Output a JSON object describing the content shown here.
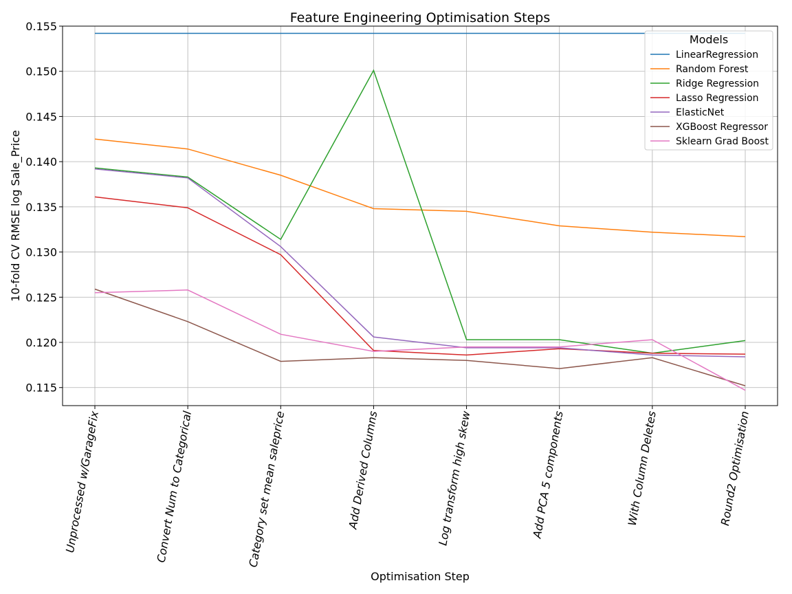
{
  "chart_data": {
    "type": "line",
    "title": "Feature Engineering Optimisation Steps",
    "xlabel": "Optimisation Step",
    "ylabel": "10-fold CV RMSE log Sale_Price",
    "categories": [
      "Unprocessed w/GarageFix",
      "Convert Num to Categorical",
      "Category set mean saleprice",
      "Add Derived Columns",
      "Log transform high skew",
      "Add PCA 5 components",
      "With Column Deletes",
      "Round2 Optimisation"
    ],
    "ylim": [
      0.113,
      0.155
    ],
    "yticks": [
      0.115,
      0.12,
      0.125,
      0.13,
      0.135,
      0.14,
      0.145,
      0.15,
      0.155
    ],
    "ytick_labels": [
      "0.115",
      "0.120",
      "0.125",
      "0.130",
      "0.135",
      "0.140",
      "0.145",
      "0.150",
      "0.155"
    ],
    "grid": true,
    "legend": {
      "title": "Models",
      "position": "top-right"
    },
    "series": [
      {
        "name": "LinearRegression",
        "color": "#1f77b4",
        "values": [
          0.1542,
          0.1542,
          0.1542,
          0.1542,
          0.1542,
          0.1542,
          0.1542,
          0.1542
        ]
      },
      {
        "name": "Random Forest",
        "color": "#ff7f0e",
        "values": [
          0.1425,
          0.1414,
          0.1385,
          0.1348,
          0.1345,
          0.1329,
          0.1322,
          0.1317
        ]
      },
      {
        "name": "Ridge Regression",
        "color": "#2ca02c",
        "values": [
          0.1393,
          0.1383,
          0.1314,
          0.1501,
          0.1203,
          0.1203,
          0.1188,
          0.1202
        ]
      },
      {
        "name": "Lasso Regression",
        "color": "#d62728",
        "values": [
          0.1361,
          0.1349,
          0.1297,
          0.1191,
          0.1186,
          0.1193,
          0.1188,
          0.1187
        ]
      },
      {
        "name": "ElasticNet",
        "color": "#9467bd",
        "values": [
          0.1392,
          0.1382,
          0.1306,
          0.1206,
          0.1194,
          0.1194,
          0.1186,
          0.1184
        ]
      },
      {
        "name": "XGBoost Regressor",
        "color": "#8c564b",
        "values": [
          0.1259,
          0.1223,
          0.1179,
          0.1183,
          0.118,
          0.1171,
          0.1183,
          0.1152
        ]
      },
      {
        "name": "Sklearn Grad Boost",
        "color": "#e377c2",
        "values": [
          0.1255,
          0.1258,
          0.1209,
          0.119,
          0.1195,
          0.1195,
          0.1203,
          0.1147
        ]
      }
    ]
  }
}
